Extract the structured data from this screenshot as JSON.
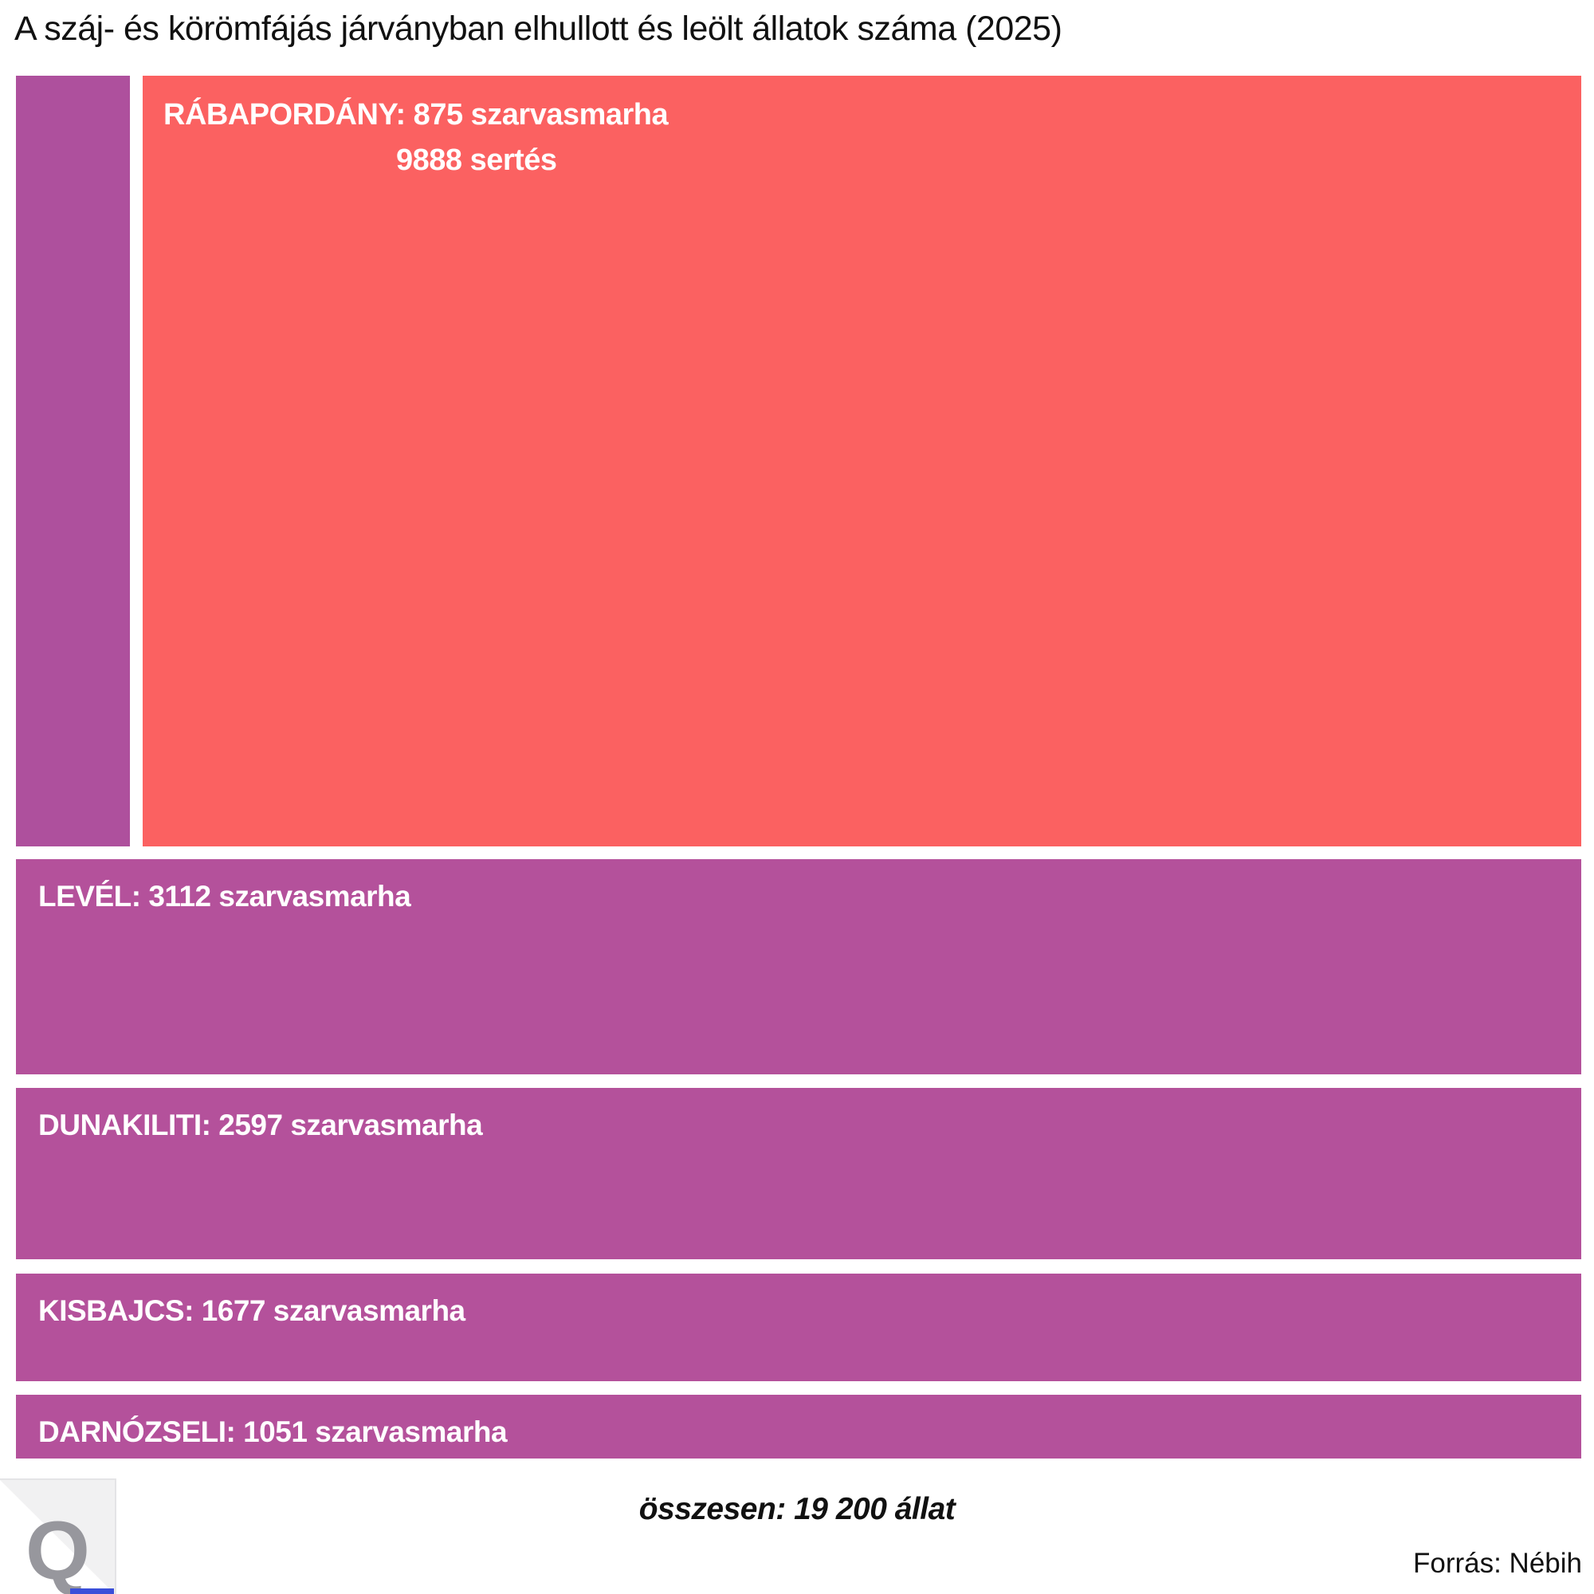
{
  "header": {
    "title": "A száj- és körömfájás járványban elhullott és leölt állatok száma (2025)"
  },
  "chart_data": {
    "type": "treemap",
    "title": "A száj- és körömfájás járványban elhullott és leölt állatok száma (2025)",
    "unit": "állat",
    "total": 19200,
    "total_label": "összesen: 19 200 állat",
    "source_label": "Forrás: Nébih",
    "layout": "rows stacked vertically, row heights proportional to values; first row split horizontally into a narrow purple block (875 szarvasmarha) and a wide red block (9888 sertés)",
    "nodes": [
      {
        "name": "RÁBAPORDÁNY",
        "value_total": 10763,
        "szarvasmarha": 875,
        "sertes": 9888,
        "label_line1": "RÁBAPORDÁNY: 875 szarvasmarha",
        "label_line2": "9888 sertés",
        "pigs_color": "#fb6161",
        "cattle_color": "#ae509d"
      },
      {
        "name": "LEVÉL",
        "value_total": 3112,
        "szarvasmarha": 3112,
        "label": "LEVÉL: 3112 szarvasmarha",
        "color": "#b4519b"
      },
      {
        "name": "DUNAKILITI",
        "value_total": 2597,
        "szarvasmarha": 2597,
        "label": "DUNAKILITI: 2597 szarvasmarha",
        "color": "#b4519b"
      },
      {
        "name": "KISBAJCS",
        "value_total": 1677,
        "szarvasmarha": 1677,
        "label": "KISBAJCS: 1677 szarvasmarha",
        "color": "#b4519b"
      },
      {
        "name": "DARNÓZSELI",
        "value_total": 1051,
        "szarvasmarha": 1051,
        "label": "DARNÓZSELI: 1051 szarvasmarha",
        "color": "#b4519b"
      }
    ]
  },
  "footer": {
    "logo_letter": "Q",
    "total_label": "összesen: 19 200 állat",
    "source_label": "Forrás: Nébih"
  },
  "colors": {
    "pigs_red": "#fb6161",
    "cattle_purple": "#b4519b",
    "strip_purple": "#ae509d",
    "title_text": "#111111",
    "label_text": "#ffffff",
    "logo_gray": "#97979d",
    "logo_bg": "#f1f1f2",
    "logo_accent_blue": "#3b4fd9"
  }
}
